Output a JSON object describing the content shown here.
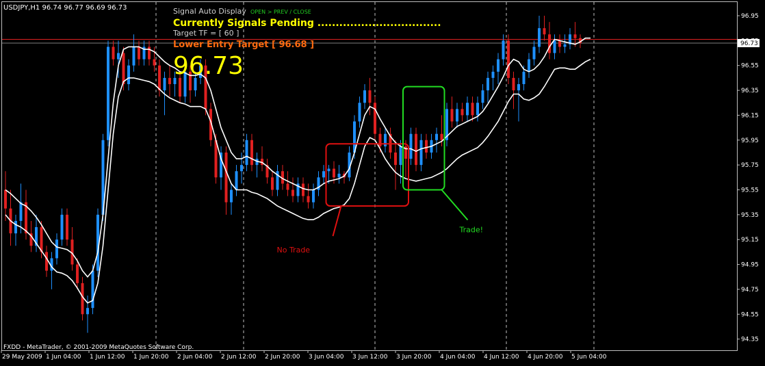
{
  "chart_data": {
    "type": "candlestick",
    "symbol_header": "USDJPY,H1  96.74 96.77 96.69 96.73",
    "ylim": [
      94.26,
      97.06
    ],
    "y_ticks": [
      "96.95",
      "96.75",
      "96.55",
      "96.35",
      "96.15",
      "95.95",
      "95.75",
      "95.55",
      "95.35",
      "95.15",
      "94.95",
      "94.75",
      "94.55",
      "94.35"
    ],
    "x_labels": [
      "29 May 2009",
      "1 Jun 04:00",
      "1 Jun 12:00",
      "1 Jun 20:00",
      "2 Jun 04:00",
      "2 Jun 12:00",
      "2 Jun 20:00",
      "3 Jun 04:00",
      "3 Jun 12:00",
      "3 Jun 20:00",
      "4 Jun 04:00",
      "4 Jun 12:00",
      "4 Jun 20:00",
      "5 Jun 04:00"
    ],
    "vertical_grid_at_labels": [
      3,
      5,
      8,
      11,
      13
    ],
    "candles": [
      {
        "o": 95.55,
        "h": 95.7,
        "l": 95.3,
        "c": 95.4
      },
      {
        "o": 95.4,
        "h": 95.55,
        "l": 95.1,
        "c": 95.2
      },
      {
        "o": 95.2,
        "h": 95.35,
        "l": 95.1,
        "c": 95.3
      },
      {
        "o": 95.3,
        "h": 95.6,
        "l": 95.2,
        "c": 95.45
      },
      {
        "o": 95.45,
        "h": 95.55,
        "l": 95.15,
        "c": 95.2
      },
      {
        "o": 95.2,
        "h": 95.3,
        "l": 95.05,
        "c": 95.1
      },
      {
        "o": 95.1,
        "h": 95.35,
        "l": 95.05,
        "c": 95.25
      },
      {
        "o": 95.25,
        "h": 95.3,
        "l": 95.0,
        "c": 95.05
      },
      {
        "o": 95.05,
        "h": 95.1,
        "l": 94.85,
        "c": 94.9
      },
      {
        "o": 94.9,
        "h": 95.05,
        "l": 94.75,
        "c": 95.0
      },
      {
        "o": 95.0,
        "h": 95.2,
        "l": 94.95,
        "c": 95.15
      },
      {
        "o": 95.15,
        "h": 95.4,
        "l": 95.1,
        "c": 95.35
      },
      {
        "o": 95.35,
        "h": 95.4,
        "l": 95.1,
        "c": 95.15
      },
      {
        "o": 95.15,
        "h": 95.25,
        "l": 94.9,
        "c": 94.95
      },
      {
        "o": 94.95,
        "h": 95.0,
        "l": 94.75,
        "c": 94.8
      },
      {
        "o": 94.8,
        "h": 94.85,
        "l": 94.5,
        "c": 94.55
      },
      {
        "o": 94.55,
        "h": 94.7,
        "l": 94.4,
        "c": 94.6
      },
      {
        "o": 94.6,
        "h": 94.95,
        "l": 94.55,
        "c": 94.9
      },
      {
        "o": 94.9,
        "h": 95.4,
        "l": 94.85,
        "c": 95.35
      },
      {
        "o": 95.35,
        "h": 96.0,
        "l": 95.3,
        "c": 95.95
      },
      {
        "o": 95.95,
        "h": 96.75,
        "l": 95.9,
        "c": 96.7
      },
      {
        "o": 96.7,
        "h": 96.75,
        "l": 96.55,
        "c": 96.6
      },
      {
        "o": 96.6,
        "h": 96.75,
        "l": 96.45,
        "c": 96.65
      },
      {
        "o": 96.65,
        "h": 96.7,
        "l": 96.35,
        "c": 96.4
      },
      {
        "o": 96.4,
        "h": 96.6,
        "l": 96.35,
        "c": 96.55
      },
      {
        "o": 96.55,
        "h": 96.8,
        "l": 96.5,
        "c": 96.7
      },
      {
        "o": 96.7,
        "h": 96.75,
        "l": 96.55,
        "c": 96.6
      },
      {
        "o": 96.6,
        "h": 96.75,
        "l": 96.55,
        "c": 96.7
      },
      {
        "o": 96.7,
        "h": 96.75,
        "l": 96.55,
        "c": 96.6
      },
      {
        "o": 96.6,
        "h": 96.7,
        "l": 96.5,
        "c": 96.55
      },
      {
        "o": 96.55,
        "h": 96.6,
        "l": 96.3,
        "c": 96.35
      },
      {
        "o": 96.35,
        "h": 96.5,
        "l": 96.15,
        "c": 96.45
      },
      {
        "o": 96.45,
        "h": 96.55,
        "l": 96.3,
        "c": 96.4
      },
      {
        "o": 96.4,
        "h": 96.5,
        "l": 96.3,
        "c": 96.45
      },
      {
        "o": 96.45,
        "h": 96.5,
        "l": 96.25,
        "c": 96.3
      },
      {
        "o": 96.3,
        "h": 96.55,
        "l": 96.25,
        "c": 96.5
      },
      {
        "o": 96.5,
        "h": 96.55,
        "l": 96.25,
        "c": 96.35
      },
      {
        "o": 96.35,
        "h": 96.5,
        "l": 96.3,
        "c": 96.45
      },
      {
        "o": 96.45,
        "h": 96.6,
        "l": 96.4,
        "c": 96.55
      },
      {
        "o": 96.55,
        "h": 96.6,
        "l": 96.15,
        "c": 96.2
      },
      {
        "o": 96.2,
        "h": 96.25,
        "l": 95.9,
        "c": 95.95
      },
      {
        "o": 95.95,
        "h": 96.0,
        "l": 95.6,
        "c": 95.65
      },
      {
        "o": 95.65,
        "h": 95.9,
        "l": 95.55,
        "c": 95.85
      },
      {
        "o": 95.85,
        "h": 95.9,
        "l": 95.35,
        "c": 95.45
      },
      {
        "o": 95.45,
        "h": 95.6,
        "l": 95.35,
        "c": 95.55
      },
      {
        "o": 95.55,
        "h": 95.75,
        "l": 95.5,
        "c": 95.7
      },
      {
        "o": 95.7,
        "h": 95.85,
        "l": 95.6,
        "c": 95.75
      },
      {
        "o": 95.75,
        "h": 96.0,
        "l": 95.7,
        "c": 95.95
      },
      {
        "o": 95.95,
        "h": 96.0,
        "l": 95.7,
        "c": 95.75
      },
      {
        "o": 95.75,
        "h": 95.85,
        "l": 95.65,
        "c": 95.8
      },
      {
        "o": 95.8,
        "h": 95.9,
        "l": 95.7,
        "c": 95.75
      },
      {
        "o": 95.75,
        "h": 95.8,
        "l": 95.6,
        "c": 95.65
      },
      {
        "o": 95.65,
        "h": 95.7,
        "l": 95.5,
        "c": 95.55
      },
      {
        "o": 95.55,
        "h": 95.75,
        "l": 95.5,
        "c": 95.7
      },
      {
        "o": 95.7,
        "h": 95.75,
        "l": 95.55,
        "c": 95.6
      },
      {
        "o": 95.6,
        "h": 95.7,
        "l": 95.5,
        "c": 95.55
      },
      {
        "o": 95.55,
        "h": 95.65,
        "l": 95.45,
        "c": 95.5
      },
      {
        "o": 95.5,
        "h": 95.65,
        "l": 95.45,
        "c": 95.6
      },
      {
        "o": 95.6,
        "h": 95.65,
        "l": 95.45,
        "c": 95.5
      },
      {
        "o": 95.5,
        "h": 95.6,
        "l": 95.4,
        "c": 95.45
      },
      {
        "o": 95.45,
        "h": 95.6,
        "l": 95.4,
        "c": 95.55
      },
      {
        "o": 95.55,
        "h": 95.7,
        "l": 95.5,
        "c": 95.65
      },
      {
        "o": 95.65,
        "h": 95.75,
        "l": 95.6,
        "c": 95.7
      },
      {
        "o": 95.7,
        "h": 95.75,
        "l": 95.6,
        "c": 95.72
      },
      {
        "o": 95.72,
        "h": 95.78,
        "l": 95.6,
        "c": 95.65
      },
      {
        "o": 95.65,
        "h": 95.75,
        "l": 95.6,
        "c": 95.68
      },
      {
        "o": 95.68,
        "h": 95.7,
        "l": 95.6,
        "c": 95.65
      },
      {
        "o": 95.65,
        "h": 95.9,
        "l": 95.62,
        "c": 95.85
      },
      {
        "o": 95.85,
        "h": 96.15,
        "l": 95.8,
        "c": 96.1
      },
      {
        "o": 96.1,
        "h": 96.3,
        "l": 96.05,
        "c": 96.25
      },
      {
        "o": 96.25,
        "h": 96.4,
        "l": 96.2,
        "c": 96.35
      },
      {
        "o": 96.35,
        "h": 96.45,
        "l": 96.15,
        "c": 96.25
      },
      {
        "o": 96.25,
        "h": 96.3,
        "l": 95.95,
        "c": 96.0
      },
      {
        "o": 96.0,
        "h": 96.05,
        "l": 95.85,
        "c": 95.9
      },
      {
        "o": 95.9,
        "h": 96.05,
        "l": 95.85,
        "c": 96.0
      },
      {
        "o": 96.0,
        "h": 96.05,
        "l": 95.8,
        "c": 95.85
      },
      {
        "o": 95.85,
        "h": 95.95,
        "l": 95.55,
        "c": 95.75
      },
      {
        "o": 95.75,
        "h": 95.95,
        "l": 95.6,
        "c": 95.9
      },
      {
        "o": 95.9,
        "h": 95.95,
        "l": 95.65,
        "c": 95.8
      },
      {
        "o": 95.8,
        "h": 96.05,
        "l": 95.75,
        "c": 96.0
      },
      {
        "o": 96.0,
        "h": 96.05,
        "l": 95.7,
        "c": 95.75
      },
      {
        "o": 95.75,
        "h": 96.0,
        "l": 95.7,
        "c": 95.95
      },
      {
        "o": 95.95,
        "h": 96.0,
        "l": 95.8,
        "c": 95.85
      },
      {
        "o": 95.85,
        "h": 96.0,
        "l": 95.8,
        "c": 95.95
      },
      {
        "o": 95.95,
        "h": 96.05,
        "l": 95.85,
        "c": 96.0
      },
      {
        "o": 96.0,
        "h": 96.15,
        "l": 95.9,
        "c": 95.95
      },
      {
        "o": 95.95,
        "h": 96.25,
        "l": 95.9,
        "c": 96.2
      },
      {
        "o": 96.2,
        "h": 96.3,
        "l": 96.05,
        "c": 96.1
      },
      {
        "o": 96.1,
        "h": 96.25,
        "l": 96.05,
        "c": 96.2
      },
      {
        "o": 96.2,
        "h": 96.25,
        "l": 96.1,
        "c": 96.15
      },
      {
        "o": 96.15,
        "h": 96.3,
        "l": 96.1,
        "c": 96.25
      },
      {
        "o": 96.25,
        "h": 96.3,
        "l": 96.1,
        "c": 96.15
      },
      {
        "o": 96.15,
        "h": 96.3,
        "l": 96.1,
        "c": 96.25
      },
      {
        "o": 96.25,
        "h": 96.4,
        "l": 96.2,
        "c": 96.35
      },
      {
        "o": 96.35,
        "h": 96.5,
        "l": 96.25,
        "c": 96.45
      },
      {
        "o": 96.45,
        "h": 96.55,
        "l": 96.35,
        "c": 96.5
      },
      {
        "o": 96.5,
        "h": 96.65,
        "l": 96.4,
        "c": 96.6
      },
      {
        "o": 96.6,
        "h": 96.8,
        "l": 96.55,
        "c": 96.75
      },
      {
        "o": 96.75,
        "h": 96.8,
        "l": 96.4,
        "c": 96.45
      },
      {
        "o": 96.45,
        "h": 96.5,
        "l": 96.2,
        "c": 96.35
      },
      {
        "o": 96.35,
        "h": 96.45,
        "l": 96.1,
        "c": 96.4
      },
      {
        "o": 96.4,
        "h": 96.55,
        "l": 96.35,
        "c": 96.5
      },
      {
        "o": 96.5,
        "h": 96.65,
        "l": 96.45,
        "c": 96.6
      },
      {
        "o": 96.6,
        "h": 96.75,
        "l": 96.55,
        "c": 96.7
      },
      {
        "o": 96.7,
        "h": 96.95,
        "l": 96.65,
        "c": 96.85
      },
      {
        "o": 96.85,
        "h": 96.95,
        "l": 96.75,
        "c": 96.8
      },
      {
        "o": 96.8,
        "h": 96.9,
        "l": 96.6,
        "c": 96.65
      },
      {
        "o": 96.65,
        "h": 96.8,
        "l": 96.6,
        "c": 96.75
      },
      {
        "o": 96.75,
        "h": 96.8,
        "l": 96.65,
        "c": 96.7
      },
      {
        "o": 96.7,
        "h": 96.8,
        "l": 96.65,
        "c": 96.72
      },
      {
        "o": 96.72,
        "h": 96.85,
        "l": 96.68,
        "c": 96.8
      },
      {
        "o": 96.8,
        "h": 96.9,
        "l": 96.7,
        "c": 96.77
      },
      {
        "o": 96.77,
        "h": 96.8,
        "l": 96.69,
        "c": 96.73
      }
    ],
    "upper_band": [
      95.55,
      95.52,
      95.48,
      95.44,
      95.42,
      95.38,
      95.33,
      95.27,
      95.2,
      95.13,
      95.09,
      95.08,
      95.07,
      95.04,
      94.98,
      94.9,
      94.85,
      94.9,
      95.05,
      95.35,
      95.8,
      96.25,
      96.55,
      96.68,
      96.7,
      96.7,
      96.7,
      96.68,
      96.68,
      96.66,
      96.62,
      96.58,
      96.55,
      96.53,
      96.5,
      96.49,
      96.47,
      96.47,
      96.48,
      96.45,
      96.35,
      96.2,
      96.05,
      95.95,
      95.85,
      95.8,
      95.8,
      95.82,
      95.8,
      95.78,
      95.77,
      95.74,
      95.7,
      95.67,
      95.64,
      95.62,
      95.6,
      95.58,
      95.56,
      95.55,
      95.55,
      95.57,
      95.6,
      95.62,
      95.63,
      95.64,
      95.66,
      95.72,
      95.85,
      96.0,
      96.15,
      96.22,
      96.2,
      96.12,
      96.05,
      95.98,
      95.93,
      95.9,
      95.88,
      95.88,
      95.86,
      95.88,
      95.89,
      95.9,
      95.92,
      95.94,
      95.98,
      96.02,
      96.06,
      96.08,
      96.1,
      96.12,
      96.14,
      96.18,
      96.24,
      96.31,
      96.38,
      96.46,
      96.55,
      96.6,
      96.58,
      96.52,
      96.5,
      96.52,
      96.56,
      96.62,
      96.7,
      96.76,
      96.75,
      96.74,
      96.73,
      96.72,
      96.74,
      96.77,
      96.77
    ],
    "lower_band": [
      95.35,
      95.3,
      95.27,
      95.25,
      95.22,
      95.18,
      95.12,
      95.06,
      95.0,
      94.93,
      94.89,
      94.88,
      94.86,
      94.82,
      94.76,
      94.69,
      94.64,
      94.66,
      94.8,
      95.1,
      95.55,
      96.0,
      96.3,
      96.42,
      96.45,
      96.45,
      96.44,
      96.43,
      96.42,
      96.4,
      96.36,
      96.32,
      96.29,
      96.27,
      96.25,
      96.24,
      96.22,
      96.22,
      96.22,
      96.2,
      96.1,
      95.95,
      95.8,
      95.7,
      95.6,
      95.55,
      95.55,
      95.55,
      95.53,
      95.52,
      95.5,
      95.48,
      95.45,
      95.42,
      95.4,
      95.38,
      95.36,
      95.34,
      95.32,
      95.31,
      95.31,
      95.33,
      95.36,
      95.38,
      95.4,
      95.41,
      95.43,
      95.48,
      95.6,
      95.75,
      95.9,
      95.97,
      95.95,
      95.88,
      95.8,
      95.74,
      95.69,
      95.66,
      95.64,
      95.63,
      95.62,
      95.63,
      95.64,
      95.65,
      95.67,
      95.69,
      95.72,
      95.76,
      95.8,
      95.83,
      95.85,
      95.87,
      95.89,
      95.93,
      95.98,
      96.04,
      96.1,
      96.18,
      96.26,
      96.32,
      96.32,
      96.28,
      96.27,
      96.29,
      96.32,
      96.38,
      96.45,
      96.52,
      96.53,
      96.53,
      96.52,
      96.52,
      96.55,
      96.58,
      96.6
    ],
    "price_lines": [
      {
        "value": 96.76,
        "color": "#e02020"
      },
      {
        "value": 96.73,
        "color": "#808080"
      }
    ],
    "current_price_label": "96.73",
    "annotations": {
      "no_trade_box": {
        "x0": 63,
        "x1": 78,
        "y0": 95.42,
        "y1": 95.92
      },
      "trade_box": {
        "x0": 78,
        "x1": 85,
        "y0": 95.55,
        "y1": 96.38
      },
      "no_trade_text": "No Trade",
      "trade_text": "Trade!"
    }
  },
  "overlay": {
    "title": "Signal Auto Display",
    "buttons": "OPEN > PREV / CLOSE",
    "signals": "Currently Signals Pending ..................................",
    "target_tf": "Target  TF = [ 60 ]",
    "lower_entry": "Lower Entry Target [ 96.68 ]",
    "big_price": "96.73"
  },
  "copyright": "FXDD - MetaTrader, © 2001-2009 MetaQuotes Software Corp.",
  "colors": {
    "bull": "#1e90ff",
    "bear": "#e02020",
    "band": "#ffffff",
    "grid": "#c0c0c0",
    "no_trade": "#e01010",
    "trade": "#22dd22",
    "signal_text": "#ffff00",
    "lower_entry": "#ff6a10",
    "button_text": "#22cc22",
    "axis_text": "#ffffff"
  }
}
